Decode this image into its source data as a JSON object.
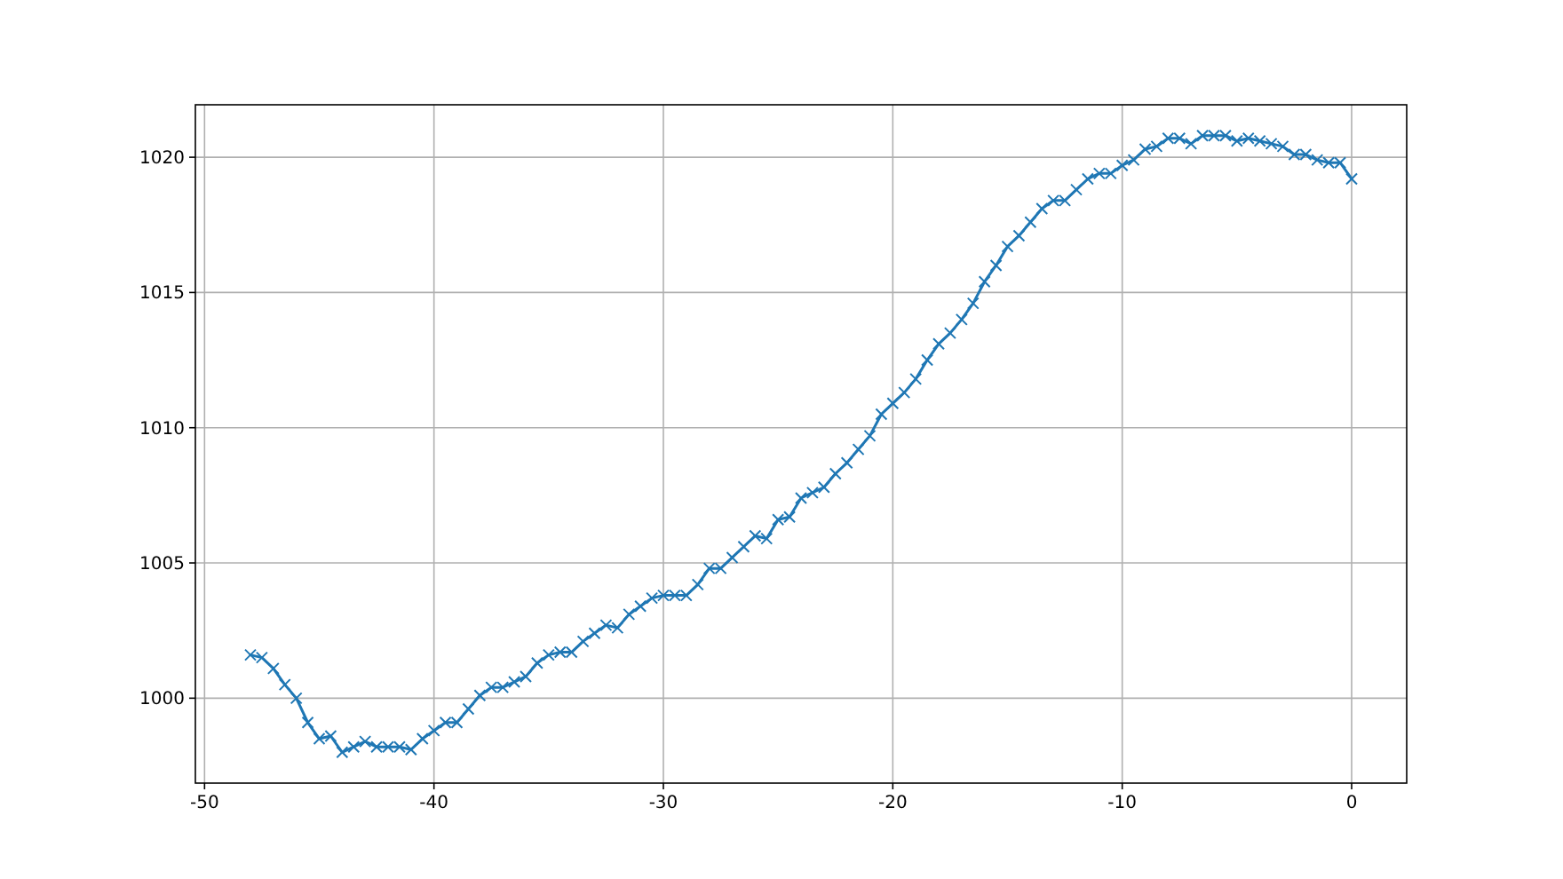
{
  "chart_data": {
    "type": "line",
    "x": [
      -48,
      -47.5,
      -47,
      -46.5,
      -46,
      -45.5,
      -45,
      -44.5,
      -44,
      -43.5,
      -43,
      -42.5,
      -42,
      -41.5,
      -41,
      -40.5,
      -40,
      -39.5,
      -39,
      -38.5,
      -38,
      -37.5,
      -37,
      -36.5,
      -36,
      -35.5,
      -35,
      -34.5,
      -34,
      -33.5,
      -33,
      -32.5,
      -32,
      -31.5,
      -31,
      -30.5,
      -30,
      -29.5,
      -29,
      -28.5,
      -28,
      -27.5,
      -27,
      -26.5,
      -26,
      -25.5,
      -25,
      -24.5,
      -24,
      -23.5,
      -23,
      -22.5,
      -22,
      -21.5,
      -21,
      -20.5,
      -20,
      -19.5,
      -19,
      -18.5,
      -18,
      -17.5,
      -17,
      -16.5,
      -16,
      -15.5,
      -15,
      -14.5,
      -14,
      -13.5,
      -13,
      -12.5,
      -12,
      -11.5,
      -11,
      -10.5,
      -10,
      -9.5,
      -9,
      -8.5,
      -8,
      -7.5,
      -7,
      -6.5,
      -6,
      -5.5,
      -5,
      -4.5,
      -4,
      -3.5,
      -3,
      -2.5,
      -2,
      -1.5,
      -1,
      -0.5,
      0
    ],
    "series": [
      {
        "color": "#1f77b4",
        "values": [
          1001.6,
          1001.5,
          1001.1,
          1000.5,
          1000.0,
          999.1,
          998.5,
          998.6,
          998.0,
          998.2,
          998.4,
          998.2,
          998.2,
          998.2,
          998.1,
          998.5,
          998.8,
          999.1,
          999.1,
          999.6,
          1000.1,
          1000.4,
          1000.4,
          1000.6,
          1000.8,
          1001.3,
          1001.6,
          1001.7,
          1001.7,
          1002.1,
          1002.4,
          1002.7,
          1002.6,
          1003.1,
          1003.4,
          1003.7,
          1003.8,
          1003.8,
          1003.8,
          1004.2,
          1004.8,
          1004.8,
          1005.2,
          1005.6,
          1006.0,
          1005.9,
          1006.6,
          1006.7,
          1007.4,
          1007.6,
          1007.8,
          1008.3,
          1008.7,
          1009.2,
          1009.7,
          1010.5,
          1010.9,
          1011.3,
          1011.8,
          1012.5,
          1013.1,
          1013.5,
          1014.0,
          1014.6,
          1015.4,
          1016.0,
          1016.7,
          1017.1,
          1017.6,
          1018.1,
          1018.4,
          1018.4,
          1018.8,
          1019.2,
          1019.4,
          1019.4,
          1019.7,
          1019.9,
          1020.3,
          1020.4,
          1020.7,
          1020.7,
          1020.5,
          1020.8,
          1020.8,
          1020.8,
          1020.6,
          1020.7,
          1020.6,
          1020.5,
          1020.4,
          1020.1,
          1020.1,
          1019.9,
          1019.8,
          1019.8,
          1019.2
        ]
      }
    ],
    "xlim": [
      -50.4,
      2.4
    ],
    "ylim": [
      996.86,
      1021.94
    ],
    "xticks": [
      -50,
      -40,
      -30,
      -20,
      -10,
      0
    ],
    "yticks": [
      1000,
      1005,
      1010,
      1015,
      1020
    ],
    "grid": true,
    "marker": "cross",
    "line_style": "solid"
  }
}
